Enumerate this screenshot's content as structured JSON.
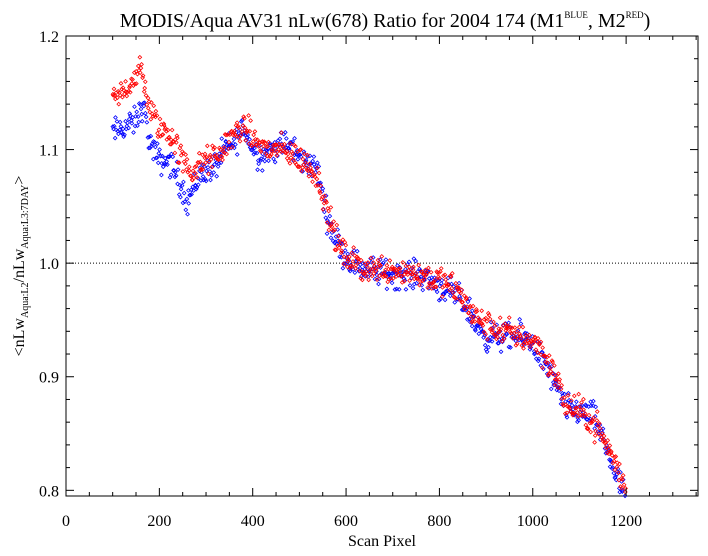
{
  "chart_data": {
    "type": "scatter",
    "title": {
      "main": "MODIS/Aqua AV31 nLw(678) Ratio for 2004 174 (M1",
      "sup1": "BLUE",
      "mid": ", M2",
      "sup2": "RED",
      "end": ")"
    },
    "xlabel": "Scan Pixel",
    "ylabel": {
      "a": "<nLw",
      "a_sub": "Aqua:L2",
      "b": "/nLw",
      "b_sub": "Aqua:L3:7DAY",
      "c": ">"
    },
    "xlim": [
      0,
      1354
    ],
    "ylim": [
      0.795,
      1.2
    ],
    "xticks": [
      0,
      200,
      400,
      600,
      800,
      1000,
      1200
    ],
    "xtick_labels": [
      "0",
      "200",
      "400",
      "600",
      "800",
      "1000",
      "1200"
    ],
    "yticks": [
      0.8,
      0.9,
      1.0,
      1.1,
      1.2
    ],
    "ytick_labels": [
      "0.8",
      "0.9",
      "1.0",
      "1.1",
      "1.2"
    ],
    "reference_line": 1.0,
    "x_range": [
      100,
      1200
    ],
    "series": [
      {
        "color": "#0000ff",
        "marker": "diamond",
        "trend": [
          [
            100,
            1.115
          ],
          [
            150,
            1.125
          ],
          [
            165,
            1.14
          ],
          [
            180,
            1.105
          ],
          [
            200,
            1.09
          ],
          [
            220,
            1.09
          ],
          [
            240,
            1.075
          ],
          [
            260,
            1.055
          ],
          [
            290,
            1.08
          ],
          [
            320,
            1.085
          ],
          [
            340,
            1.1
          ],
          [
            360,
            1.105
          ],
          [
            380,
            1.12
          ],
          [
            400,
            1.1
          ],
          [
            420,
            1.095
          ],
          [
            440,
            1.1
          ],
          [
            470,
            1.105
          ],
          [
            490,
            1.1
          ],
          [
            500,
            1.09
          ],
          [
            520,
            1.09
          ],
          [
            540,
            1.08
          ],
          [
            560,
            1.04
          ],
          [
            580,
            1.02
          ],
          [
            600,
            1.005
          ],
          [
            640,
            0.995
          ],
          [
            700,
            0.99
          ],
          [
            760,
            0.99
          ],
          [
            800,
            0.98
          ],
          [
            840,
            0.97
          ],
          [
            860,
            0.96
          ],
          [
            880,
            0.945
          ],
          [
            900,
            0.935
          ],
          [
            940,
            0.935
          ],
          [
            980,
            0.935
          ],
          [
            1000,
            0.93
          ],
          [
            1020,
            0.915
          ],
          [
            1040,
            0.9
          ],
          [
            1060,
            0.88
          ],
          [
            1080,
            0.87
          ],
          [
            1100,
            0.87
          ],
          [
            1130,
            0.865
          ],
          [
            1160,
            0.835
          ],
          [
            1180,
            0.81
          ],
          [
            1200,
            0.795
          ]
        ]
      },
      {
        "color": "#ff0000",
        "marker": "diamond",
        "trend": [
          [
            100,
            1.14
          ],
          [
            140,
            1.16
          ],
          [
            160,
            1.17
          ],
          [
            180,
            1.135
          ],
          [
            200,
            1.12
          ],
          [
            230,
            1.11
          ],
          [
            250,
            1.09
          ],
          [
            270,
            1.08
          ],
          [
            300,
            1.09
          ],
          [
            330,
            1.095
          ],
          [
            350,
            1.11
          ],
          [
            380,
            1.12
          ],
          [
            400,
            1.11
          ],
          [
            430,
            1.1
          ],
          [
            460,
            1.1
          ],
          [
            490,
            1.095
          ],
          [
            520,
            1.085
          ],
          [
            540,
            1.075
          ],
          [
            560,
            1.045
          ],
          [
            580,
            1.02
          ],
          [
            600,
            1.005
          ],
          [
            640,
            0.995
          ],
          [
            700,
            0.995
          ],
          [
            760,
            0.99
          ],
          [
            800,
            0.985
          ],
          [
            840,
            0.975
          ],
          [
            870,
            0.955
          ],
          [
            900,
            0.945
          ],
          [
            940,
            0.94
          ],
          [
            980,
            0.935
          ],
          [
            1010,
            0.93
          ],
          [
            1030,
            0.915
          ],
          [
            1050,
            0.9
          ],
          [
            1070,
            0.875
          ],
          [
            1100,
            0.87
          ],
          [
            1140,
            0.855
          ],
          [
            1170,
            0.83
          ],
          [
            1200,
            0.8
          ]
        ]
      }
    ]
  }
}
